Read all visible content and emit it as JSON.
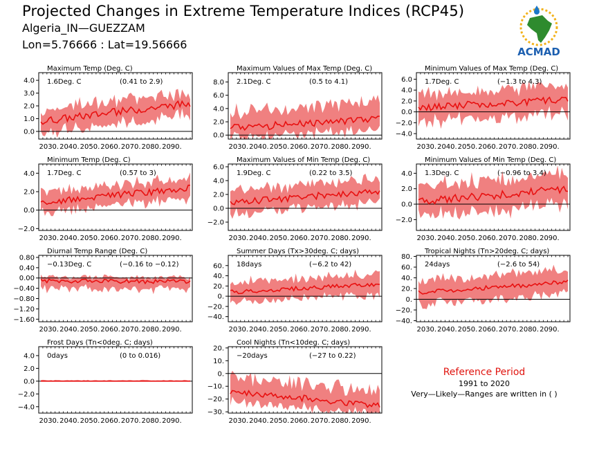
{
  "header": {
    "title": "Projected Changes in Extreme Temperature Indices (RCP45)",
    "subtitle": "Algeria_IN—GUEZZAM",
    "location": "Lon=5.76666 : Lat=19.56666"
  },
  "logo": {
    "text": "ACMAD",
    "icon": "africa-map-logo"
  },
  "reference": {
    "title": "Reference Period",
    "years": "1991 to 2020",
    "note": "Very—Likely—Ranges are written in ( )"
  },
  "colors": {
    "band": "#f08080",
    "line": "#e81010",
    "zero": "#000000",
    "title_red": "#e0140f"
  },
  "chart_data": [
    {
      "title": "Maximum Temp (Deg. C)",
      "type": "line",
      "value_text": "1.6Deg. C",
      "range_text": "(0.41 to 2.9)",
      "ylim": [
        -0.6,
        4.6
      ],
      "yticks": [
        -0.0,
        1.0,
        2.0,
        3.0,
        4.0
      ],
      "yticklabels": [
        "0.0",
        "1.0",
        "2.0",
        "3.0",
        "4.0"
      ],
      "xlim": [
        2025,
        2100
      ],
      "xticks": [
        2030,
        2040,
        2050,
        2060,
        2070,
        2080,
        2090
      ],
      "xticklabels": [
        "2030.",
        "2040.",
        "2050.",
        "2060.",
        "2070.",
        "2080.",
        "2090."
      ],
      "start": 0.8,
      "end": 2.2,
      "noise": 0.3,
      "band_low": 0.9,
      "band_high": 0.9
    },
    {
      "title": "Maximum Values of Max Temp (Deg. C)",
      "type": "line",
      "value_text": "2.1Deg. C",
      "range_text": "(0.5 to 4.1)",
      "ylim": [
        -0.6,
        9.4
      ],
      "yticks": [
        0.0,
        2.0,
        4.0,
        6.0,
        8.0
      ],
      "yticklabels": [
        "0.0",
        "2.0",
        "4.0",
        "6.0",
        "8.0"
      ],
      "xlim": [
        2025,
        2100
      ],
      "xticks": [
        2030,
        2040,
        2050,
        2060,
        2070,
        2080,
        2090
      ],
      "xticklabels": [
        "2030.",
        "2040.",
        "2050.",
        "2060.",
        "2070.",
        "2080.",
        "2090."
      ],
      "start": 1.0,
      "end": 2.6,
      "noise": 0.6,
      "band_low": 1.6,
      "band_high": 2.4
    },
    {
      "title": "Minimum Values of Max Temp (Deg. C)",
      "type": "line",
      "value_text": "1.7Deg. C",
      "range_text": "(−1.3 to 4.3)",
      "ylim": [
        -5.0,
        7.2
      ],
      "yticks": [
        -4.0,
        -2.0,
        0.0,
        2.0,
        4.0,
        6.0
      ],
      "yticklabels": [
        "−4.0",
        "−2.0",
        "0.0",
        "2.0",
        "4.0",
        "6.0"
      ],
      "xlim": [
        2025,
        2100
      ],
      "xticks": [
        2030,
        2040,
        2050,
        2060,
        2070,
        2080,
        2090
      ],
      "xticklabels": [
        "2030.",
        "2040.",
        "2050.",
        "2060.",
        "2070.",
        "2080.",
        "2090."
      ],
      "start": 0.8,
      "end": 2.2,
      "noise": 0.7,
      "band_low": 2.6,
      "band_high": 2.4
    },
    {
      "title": "Minimum Temp (Deg. C)",
      "type": "line",
      "value_text": "1.7Deg. C",
      "range_text": "(0.57 to 3)",
      "ylim": [
        -2.2,
        5.0
      ],
      "yticks": [
        -2.0,
        0.0,
        2.0,
        4.0
      ],
      "yticklabels": [
        "−2.0",
        "0.0",
        "2.0",
        "4.0"
      ],
      "xlim": [
        2025,
        2100
      ],
      "xticks": [
        2030,
        2040,
        2050,
        2060,
        2070,
        2080,
        2090
      ],
      "xticklabels": [
        "2030.",
        "2040.",
        "2050.",
        "2060.",
        "2070.",
        "2080.",
        "2090."
      ],
      "start": 0.8,
      "end": 2.4,
      "noise": 0.35,
      "band_low": 1.1,
      "band_high": 1.1
    },
    {
      "title": "Maximum Values of Min Temp (Deg. C)",
      "type": "line",
      "value_text": "1.9Deg. C",
      "range_text": "(0.22 to 3.5)",
      "ylim": [
        -3.2,
        6.4
      ],
      "yticks": [
        -2.0,
        0.0,
        2.0,
        4.0,
        6.0
      ],
      "yticklabels": [
        "−2.0",
        "0.0",
        "2.0",
        "4.0",
        "6.0"
      ],
      "xlim": [
        2025,
        2100
      ],
      "xticks": [
        2030,
        2040,
        2050,
        2060,
        2070,
        2080,
        2090
      ],
      "xticklabels": [
        "2030.",
        "2040.",
        "2050.",
        "2060.",
        "2070.",
        "2080.",
        "2090."
      ],
      "start": 0.8,
      "end": 2.5,
      "noise": 0.5,
      "band_low": 1.6,
      "band_high": 1.8
    },
    {
      "title": "Minimum Values of Min Temp (Deg. C)",
      "type": "line",
      "value_text": "1.3Deg. C",
      "range_text": "(−0.96 to 3.4)",
      "ylim": [
        -3.4,
        5.2
      ],
      "yticks": [
        -2.0,
        0.0,
        2.0,
        4.0
      ],
      "yticklabels": [
        "−2.0",
        "0.0",
        "2.0",
        "4.0"
      ],
      "xlim": [
        2025,
        2100
      ],
      "xticks": [
        2030,
        2040,
        2050,
        2060,
        2070,
        2080,
        2090
      ],
      "xticklabels": [
        "2030.",
        "2040.",
        "2050.",
        "2060.",
        "2070.",
        "2080.",
        "2090."
      ],
      "start": 0.3,
      "end": 2.0,
      "noise": 0.5,
      "band_low": 2.0,
      "band_high": 2.0
    },
    {
      "title": "Diurnal Temp Range (Deg. C)",
      "type": "line",
      "value_text": "−0.13Deg. C",
      "range_text": "(−0.16 to −0.12)",
      "ylim": [
        -1.7,
        0.88
      ],
      "yticks": [
        -1.6,
        -1.2,
        -0.8,
        -0.4,
        0.0,
        0.4,
        0.8
      ],
      "yticklabels": [
        "−1.60",
        "−1.20",
        "−0.80",
        "−0.40",
        "0.00",
        "0.40",
        "0.80"
      ],
      "xlim": [
        2025,
        2100
      ],
      "xticks": [
        2030,
        2040,
        2050,
        2060,
        2070,
        2080,
        2090
      ],
      "xticklabels": [
        "2030.",
        "2040.",
        "2050.",
        "2060.",
        "2070.",
        "2080.",
        "2090."
      ],
      "start": -0.1,
      "end": -0.15,
      "noise": 0.08,
      "band_low": 0.3,
      "band_high": 0.15
    },
    {
      "title": "Summer Days (Tx>30deg. C; days)",
      "type": "line",
      "value_text": "18days",
      "range_text": "(−6.2 to 42)",
      "ylim": [
        -50,
        80
      ],
      "yticks": [
        -40,
        -20,
        0,
        20,
        40,
        60
      ],
      "yticklabels": [
        "−40.",
        "−20.",
        "0.",
        "20.",
        "40.",
        "60."
      ],
      "xlim": [
        2025,
        2100
      ],
      "xticks": [
        2030,
        2040,
        2050,
        2060,
        2070,
        2080,
        2090
      ],
      "xticklabels": [
        "2030.",
        "2040.",
        "2050.",
        "2060.",
        "2070.",
        "2080.",
        "2090."
      ],
      "start": 8,
      "end": 24,
      "noise": 4,
      "band_low": 20,
      "band_high": 20
    },
    {
      "title": "Tropical Nights (Tn>20deg. C; days)",
      "type": "line",
      "value_text": "24days",
      "range_text": "(−2.6 to 54)",
      "ylim": [
        -42,
        82
      ],
      "yticks": [
        -40,
        -20,
        0,
        20,
        40,
        60,
        80
      ],
      "yticklabels": [
        "−40.",
        "−20.",
        "0.",
        "20.",
        "40.",
        "60.",
        "80."
      ],
      "xlim": [
        2025,
        2100
      ],
      "xticks": [
        2030,
        2040,
        2050,
        2060,
        2070,
        2080,
        2090
      ],
      "xticklabels": [
        "2030.",
        "2040.",
        "2050.",
        "2060.",
        "2070.",
        "2080.",
        "2090."
      ],
      "start": 12,
      "end": 32,
      "noise": 4,
      "band_low": 22,
      "band_high": 22
    },
    {
      "title": "Frost Days (Tn<0deg. C; days)",
      "type": "line",
      "value_text": "0days",
      "range_text": "(0 to 0.016)",
      "ylim": [
        -5.0,
        5.4
      ],
      "yticks": [
        -4.0,
        -2.0,
        0.0,
        2.0,
        4.0
      ],
      "yticklabels": [
        "−4.0",
        "−2.0",
        "0.0",
        "2.0",
        "4.0"
      ],
      "xlim": [
        2025,
        2100
      ],
      "xticks": [
        2030,
        2040,
        2050,
        2060,
        2070,
        2080,
        2090
      ],
      "xticklabels": [
        "2030.",
        "2040.",
        "2050.",
        "2060.",
        "2070.",
        "2080.",
        "2090."
      ],
      "start": 0.0,
      "end": 0.0,
      "noise": 0.0,
      "band_low": 0.05,
      "band_high": 0.15
    },
    {
      "title": "Cool Nights (Tn<10deg. C; days)",
      "type": "line",
      "value_text": "−20days",
      "range_text": "(−27 to 0.22)",
      "ylim": [
        -31,
        21
      ],
      "yticks": [
        -30,
        -20,
        -10,
        0,
        10,
        20
      ],
      "yticklabels": [
        "−30.",
        "−20.",
        "−10.",
        "0.",
        "10.",
        "20."
      ],
      "xlim": [
        2025,
        2100
      ],
      "xticks": [
        2030,
        2040,
        2050,
        2060,
        2070,
        2080,
        2090
      ],
      "xticklabels": [
        "2030.",
        "2040.",
        "2050.",
        "2060.",
        "2070.",
        "2080.",
        "2090."
      ],
      "start": -14,
      "end": -25,
      "noise": 2.5,
      "band_low": 7,
      "band_high": 12
    }
  ]
}
